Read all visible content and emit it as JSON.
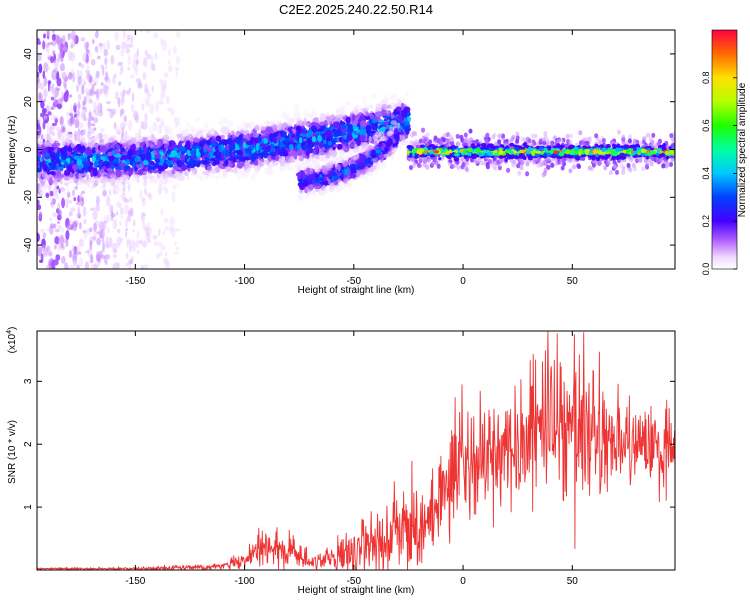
{
  "figure_title": "C2E2.2025.240.22.50.R14",
  "chart_data": [
    {
      "type": "heatmap",
      "title": "C2E2.2025.240.22.50.R14",
      "xlabel": "Height of straight line (km)",
      "ylabel": "Frequency (Hz)",
      "xlim": [
        -195,
        97
      ],
      "ylim": [
        -50,
        50
      ],
      "x_ticks": [
        -150,
        -100,
        -50,
        0,
        50
      ],
      "y_ticks": [
        -40,
        -20,
        0,
        20,
        40
      ],
      "colorbar": {
        "label": "Normalized spectral amplitude",
        "range": [
          0,
          1
        ],
        "ticks": [
          0.0,
          0.2,
          0.4,
          0.6,
          0.8
        ],
        "tick_labels": [
          "0.0",
          "0.2",
          "0.4",
          "0.6",
          "0.8"
        ]
      },
      "features": [
        {
          "name": "broadband noise",
          "x_range": [
            -195,
            -130
          ],
          "freq_range": [
            -50,
            50
          ],
          "amplitude": 0.05
        },
        {
          "name": "main track",
          "x_range": [
            -195,
            -25
          ],
          "freq_start": -5,
          "freq_end": 12,
          "amplitude": 0.3
        },
        {
          "name": "secondary track",
          "x_range": [
            -75,
            -30
          ],
          "freq_start": -13,
          "freq_end": 5,
          "amplitude": 0.25
        },
        {
          "name": "steady signal",
          "x_range": [
            -25,
            97
          ],
          "freq": -1,
          "amplitude": 0.85
        }
      ]
    },
    {
      "type": "line",
      "xlabel": "Height of straight line (km)",
      "ylabel": "SNR (10 * v/v)",
      "y_multiplier": "(x10",
      "y_multiplier_exp": "4",
      "xlim": [
        -195,
        97
      ],
      "ylim": [
        0,
        3.8
      ],
      "x_ticks": [
        -150,
        -100,
        -50,
        0,
        50
      ],
      "y_ticks": [
        1,
        2,
        3
      ],
      "series": [
        {
          "name": "SNR",
          "color": "#ee3333",
          "envelope_x": [
            -195,
            -160,
            -130,
            -110,
            -100,
            -90,
            -80,
            -70,
            -60,
            -50,
            -40,
            -30,
            -25,
            -20,
            -15,
            -10,
            -5,
            0,
            10,
            20,
            30,
            40,
            50,
            60,
            70,
            80,
            90,
            97
          ],
          "envelope_mean": [
            0.02,
            0.02,
            0.03,
            0.06,
            0.15,
            0.38,
            0.32,
            0.1,
            0.15,
            0.3,
            0.45,
            0.55,
            0.7,
            0.5,
            0.9,
            1.2,
            1.5,
            1.6,
            1.8,
            1.9,
            2.1,
            2.3,
            2.2,
            2.1,
            2.0,
            2.0,
            2.0,
            1.9
          ],
          "envelope_spread": [
            0.01,
            0.01,
            0.02,
            0.04,
            0.1,
            0.2,
            0.18,
            0.06,
            0.15,
            0.3,
            0.4,
            0.5,
            0.5,
            0.4,
            0.5,
            0.5,
            0.55,
            0.6,
            0.6,
            0.7,
            0.8,
            0.9,
            0.9,
            0.8,
            0.6,
            0.5,
            0.5,
            0.4
          ],
          "peak": {
            "x": 51,
            "y": 3.75
          }
        }
      ]
    }
  ]
}
